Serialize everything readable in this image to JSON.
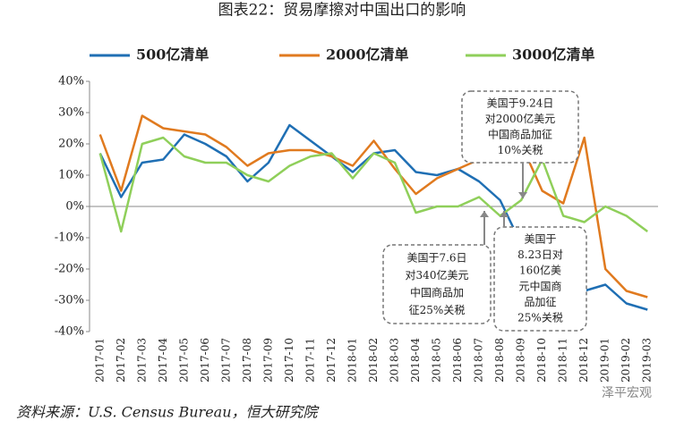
{
  "chart_data": {
    "type": "line",
    "title": "图表22：贸易摩擦对中国出口的影响",
    "source": "资料来源：U.S. Census Bureau，恒大研究院",
    "watermark": "泽平宏观",
    "categories": [
      "2017-01",
      "2017-02",
      "2017-03",
      "2017-04",
      "2017-05",
      "2017-06",
      "2017-07",
      "2017-08",
      "2017-09",
      "2017-10",
      "2017-11",
      "2017-12",
      "2018-01",
      "2018-02",
      "2018-03",
      "2018-04",
      "2018-05",
      "2018-06",
      "2018-07",
      "2018-08",
      "2018-09",
      "2018-10",
      "2018-11",
      "2018-12",
      "2019-01",
      "2019-02",
      "2019-03"
    ],
    "series": [
      {
        "name": "500亿清单",
        "color": "#1f6fb4",
        "values": [
          17,
          3,
          14,
          15,
          23,
          20,
          16,
          8,
          14,
          26,
          21,
          16,
          11,
          17,
          18,
          11,
          10,
          12,
          8,
          2,
          -12,
          -21,
          -26,
          -27,
          -25,
          -31,
          -33
        ]
      },
      {
        "name": "2000亿清单",
        "color": "#e07a1f",
        "values": [
          23,
          5,
          29,
          25,
          24,
          23,
          19,
          13,
          17,
          18,
          18,
          16,
          13,
          21,
          12,
          4,
          9,
          12,
          15,
          15,
          20,
          5,
          1,
          22,
          -20,
          -27,
          -29
        ]
      },
      {
        "name": "3000亿清单",
        "color": "#8fcf5a",
        "values": [
          17,
          -8,
          20,
          22,
          16,
          14,
          14,
          10,
          8,
          13,
          16,
          17,
          9,
          17,
          14,
          -2,
          0,
          0,
          3,
          -3,
          2,
          15,
          -3,
          -5,
          0,
          -3,
          -8
        ]
      }
    ],
    "ylim": [
      -40,
      40
    ],
    "yticks": [
      {
        "value": -40,
        "label": "-40%"
      },
      {
        "value": -30,
        "label": "-30%"
      },
      {
        "value": -20,
        "label": "-20%"
      },
      {
        "value": -10,
        "label": "-10%"
      },
      {
        "value": 0,
        "label": "0%"
      },
      {
        "value": 10,
        "label": "10%"
      },
      {
        "value": 20,
        "label": "20%"
      },
      {
        "value": 30,
        "label": "30%"
      },
      {
        "value": 40,
        "label": "40%"
      }
    ],
    "annotations": [
      {
        "lines": [
          "美国于9.24日",
          "对2000亿美元",
          "中国商品加征",
          "10%关税"
        ]
      },
      {
        "lines": [
          "美国于7.6日",
          "对340亿美元",
          "中国商品加",
          "征25%关税"
        ]
      },
      {
        "lines": [
          "美国于",
          "8.23日对",
          "160亿美",
          "元中国商",
          "品加征",
          "25%关税"
        ]
      }
    ]
  }
}
